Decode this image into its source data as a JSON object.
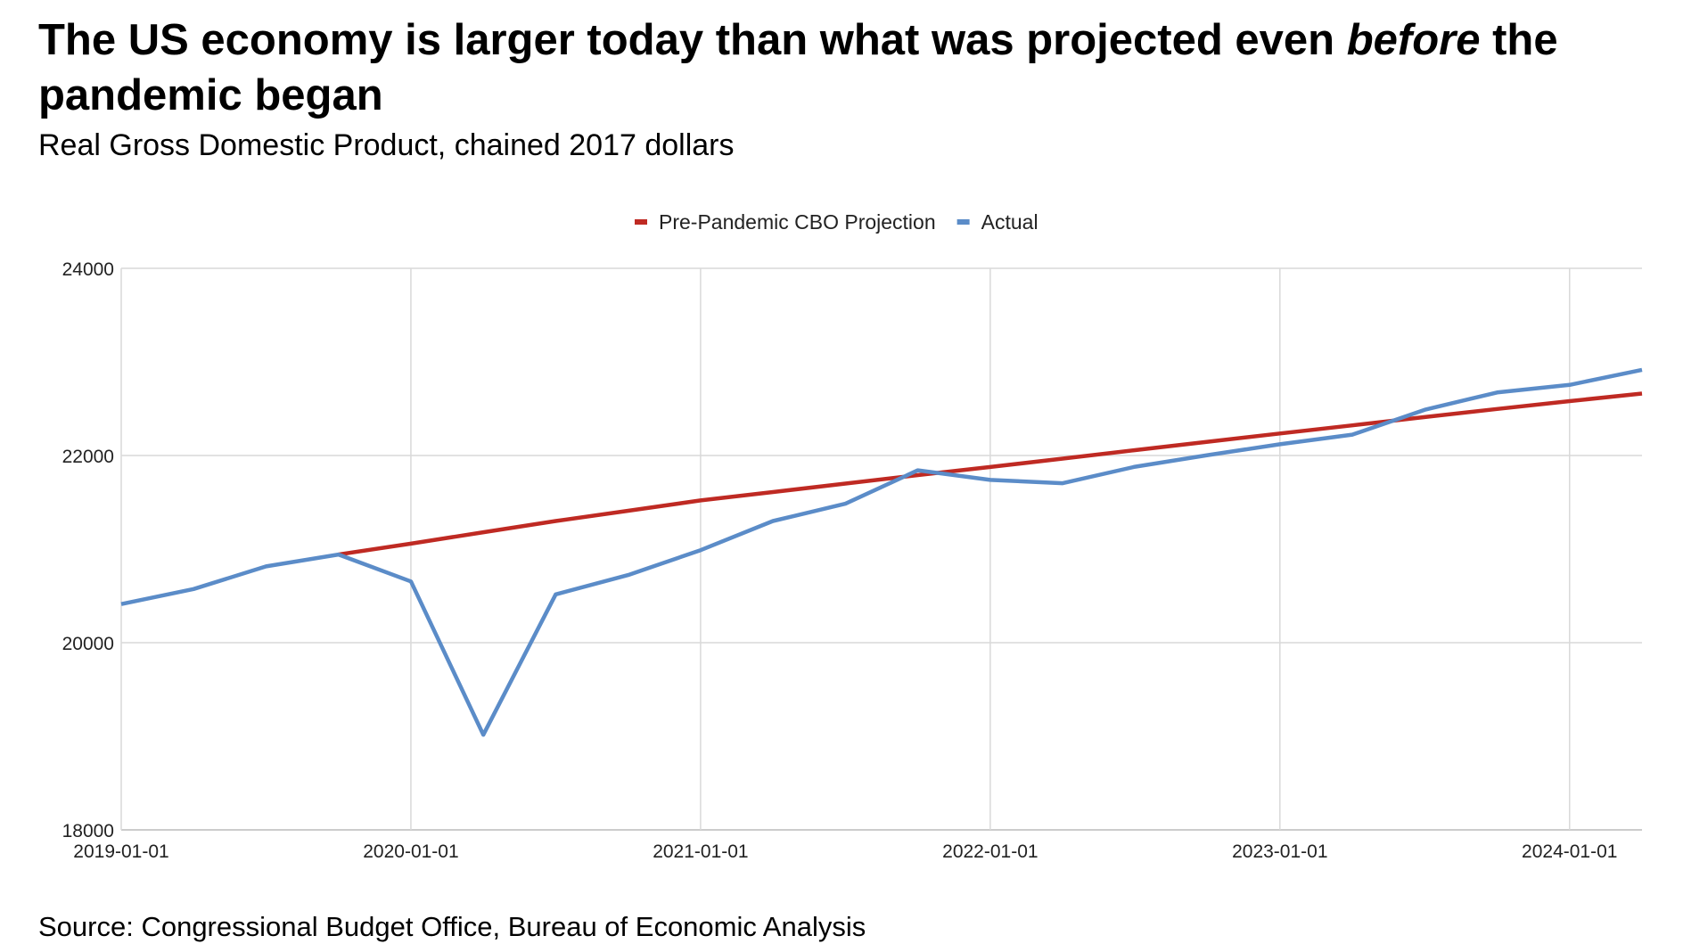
{
  "header": {
    "title_part1": "The US economy is larger today than what was projected even ",
    "title_emphasis": "before",
    "title_part2": " the pandemic began",
    "subtitle": "Real Gross Domestic Product, chained 2017 dollars"
  },
  "footer": {
    "source": "Source: Congressional Budget Office, Bureau of Economic Analysis"
  },
  "chart_data": {
    "type": "line",
    "title": "The US economy is larger today than what was projected even before the pandemic began",
    "subtitle": "Real Gross Domestic Product, chained 2017 dollars",
    "xlabel": "",
    "ylabel": "",
    "x": [
      "2019-01-01",
      "2019-04-01",
      "2019-07-01",
      "2019-10-01",
      "2020-01-01",
      "2020-04-01",
      "2020-07-01",
      "2020-10-01",
      "2021-01-01",
      "2021-04-01",
      "2021-07-01",
      "2021-10-01",
      "2022-01-01",
      "2022-04-01",
      "2022-07-01",
      "2022-10-01",
      "2023-01-01",
      "2023-04-01",
      "2023-07-01",
      "2023-10-01",
      "2024-01-01",
      "2024-04-01"
    ],
    "x_ticks": [
      "2019-01-01",
      "2020-01-01",
      "2021-01-01",
      "2022-01-01",
      "2023-01-01",
      "2024-01-01"
    ],
    "y_ticks": [
      18000,
      20000,
      22000,
      24000
    ],
    "ylim": [
      18000,
      24000
    ],
    "grid": true,
    "legend_position": "top-center",
    "series": [
      {
        "name": "Pre-Pandemic CBO Projection",
        "color": "#bf2a23",
        "values": [
          null,
          null,
          null,
          20942,
          21058,
          21180,
          21300,
          21410,
          21520,
          21610,
          21700,
          21790,
          21877,
          21967,
          22057,
          22147,
          22235,
          22322,
          22410,
          22497,
          22581,
          22662
        ]
      },
      {
        "name": "Actual",
        "color": "#5b8cc8",
        "values": [
          20412,
          20573,
          20815,
          20942,
          20654,
          19016,
          20516,
          20723,
          20989,
          21300,
          21485,
          21842,
          21739,
          21704,
          21880,
          22004,
          22120,
          22223,
          22489,
          22673,
          22754,
          22915
        ]
      }
    ]
  }
}
